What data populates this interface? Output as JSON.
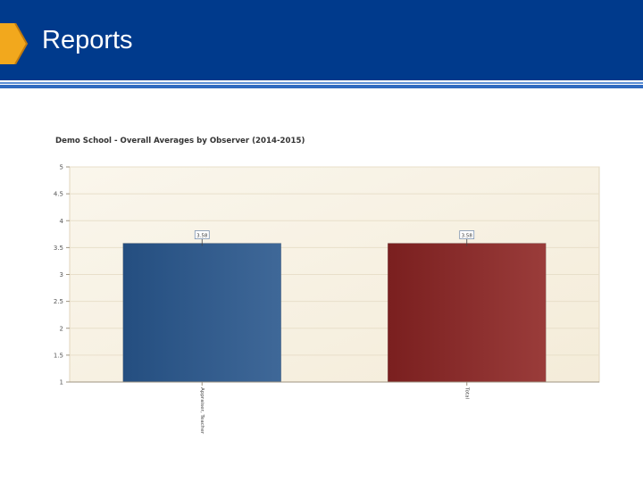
{
  "header": {
    "title": "Reports",
    "brand_color": "#003a8c",
    "accent_color": "#f2a81d"
  },
  "chart_data": {
    "type": "bar",
    "title": "Demo School - Overall Averages by Observer (2014-2015)",
    "categories": [
      "Appraiser, Teacher",
      "Total"
    ],
    "values": [
      3.58,
      3.58
    ],
    "data_labels": [
      "3.58",
      "3.58"
    ],
    "bar_colors": [
      [
        "#244e80",
        "#3f6898"
      ],
      [
        "#7a1f1f",
        "#9a3c3a"
      ]
    ],
    "ylim": [
      1,
      5
    ],
    "yticks": [
      "1",
      "1.5",
      "2",
      "2.5",
      "3",
      "3.5",
      "4",
      "4.5",
      "5"
    ],
    "xlabel": "",
    "ylabel": "",
    "grid": true,
    "legend": "none",
    "background": "#f8f2e4"
  }
}
